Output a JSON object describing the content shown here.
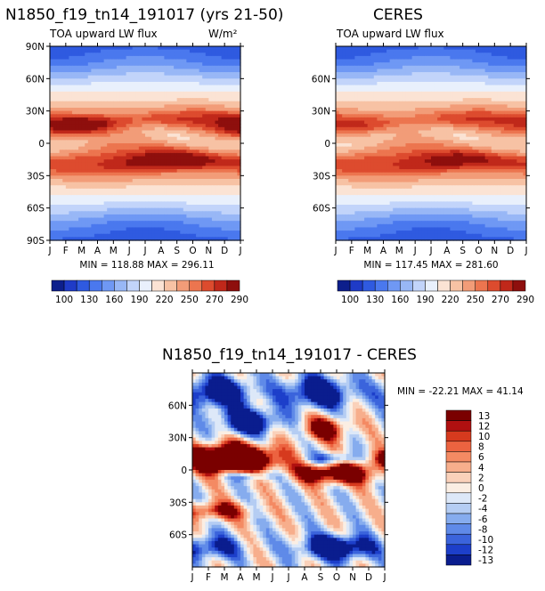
{
  "figure_title": "N1850_f19_tn14_191017 (yrs 21-50)",
  "chart_data": [
    {
      "type": "heatmap",
      "title": "N1850_f19_tn14_191017 (yrs 21-50)",
      "subtitle_left": "TOA upward LW flux",
      "units": "W/m²",
      "x_ticks": [
        "J",
        "F",
        "M",
        "A",
        "M",
        "J",
        "J",
        "A",
        "S",
        "O",
        "N",
        "D",
        "J"
      ],
      "y_ticks": [
        "90N",
        "60N",
        "30N",
        "0",
        "30S",
        "60S",
        "90S"
      ],
      "stats": "MIN = 118.88 MAX = 296.11",
      "colorbar_ticks": [
        "100",
        "130",
        "160",
        "190",
        "220",
        "250",
        "270",
        "290"
      ],
      "features": [
        {
          "lat": 15,
          "month": 2.5,
          "value": 296
        },
        {
          "lat": -15,
          "month": 7.5,
          "value": 290
        }
      ]
    },
    {
      "type": "heatmap",
      "title": "CERES",
      "subtitle_left": "TOA upward LW flux",
      "x_ticks": [
        "J",
        "F",
        "M",
        "A",
        "M",
        "J",
        "J",
        "A",
        "S",
        "O",
        "N",
        "D",
        "J"
      ],
      "y_ticks": [
        "60N",
        "30N",
        "0",
        "30S",
        "60S"
      ],
      "stats": "MIN = 117.45 MAX = 281.60",
      "colorbar_ticks": [
        "100",
        "130",
        "160",
        "190",
        "220",
        "250",
        "270",
        "290"
      ]
    },
    {
      "type": "heatmap",
      "title": "N1850_f19_tn14_191017 - CERES",
      "x_ticks": [
        "J",
        "F",
        "M",
        "A",
        "M",
        "J",
        "J",
        "A",
        "S",
        "O",
        "N",
        "D",
        "J"
      ],
      "y_ticks": [
        "60N",
        "30N",
        "0",
        "30S",
        "60S"
      ],
      "stats": "MIN = -22.21 MAX = 41.14",
      "colorbar_levels": [
        "13",
        "12",
        "10",
        "8",
        "6",
        "4",
        "2",
        "0",
        "-2",
        "-4",
        "-6",
        "-8",
        "-10",
        "-12",
        "-13"
      ],
      "features": [
        {
          "lat": 10,
          "month": 2.5,
          "value": 41
        },
        {
          "lat": -5,
          "month": 9,
          "value": 20
        },
        {
          "lat": 45,
          "month": 3,
          "value": -20
        },
        {
          "lat": -70,
          "month": 9,
          "value": -22
        }
      ]
    }
  ],
  "colors": {
    "abs_scale": [
      "#0d1f8c",
      "#1f3bc7",
      "#2f5ae0",
      "#4a78ee",
      "#6f98f4",
      "#98b7f6",
      "#c2d4fa",
      "#e9f0fc",
      "#fbe3d4",
      "#f7c2a4",
      "#f29c78",
      "#ec754f",
      "#dd4b2e",
      "#c0281a",
      "#8e0f0d"
    ],
    "diff_scale": [
      "#7a0000",
      "#b01010",
      "#d63a1e",
      "#ec6340",
      "#f48a63",
      "#f7ae8c",
      "#fad1ba",
      "#fbeee3",
      "#dde8f8",
      "#b5cdf3",
      "#86acee",
      "#5f8ae8",
      "#3b64dc",
      "#1d3fca",
      "#0a1d8e"
    ]
  }
}
